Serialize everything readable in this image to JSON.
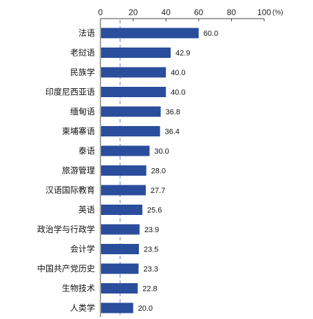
{
  "chart_data": {
    "type": "bar",
    "orientation": "horizontal",
    "categories": [
      "法语",
      "老挝语",
      "民族学",
      "印度尼西亚语",
      "缅甸语",
      "柬埔寨语",
      "泰语",
      "旅游管理",
      "汉语国际教育",
      "英语",
      "政治学与行政学",
      "会计学",
      "中国共产党历史",
      "生物技术",
      "人类学"
    ],
    "values": [
      60.0,
      42.9,
      40.0,
      40.0,
      36.8,
      36.4,
      30.0,
      28.0,
      27.7,
      25.6,
      23.9,
      23.5,
      23.3,
      22.8,
      20.0
    ],
    "value_labels": [
      "60.0",
      "42.9",
      "40.0",
      "40.0",
      "36.8",
      "36.4",
      "30.0",
      "28.0",
      "27.7",
      "25.6",
      "23.9",
      "23.5",
      "23.3",
      "22.8",
      "20.0"
    ],
    "x_ticks": [
      "0",
      "20",
      "40",
      "60",
      "80",
      "100"
    ],
    "xlim": [
      0,
      100
    ],
    "unit": "(%)",
    "reference_line": 12,
    "title": "",
    "xlabel": "",
    "ylabel": "",
    "colors": {
      "bar": "#2a4d9c",
      "reference_line": "#8fa4c8",
      "axis": "#444444"
    }
  }
}
